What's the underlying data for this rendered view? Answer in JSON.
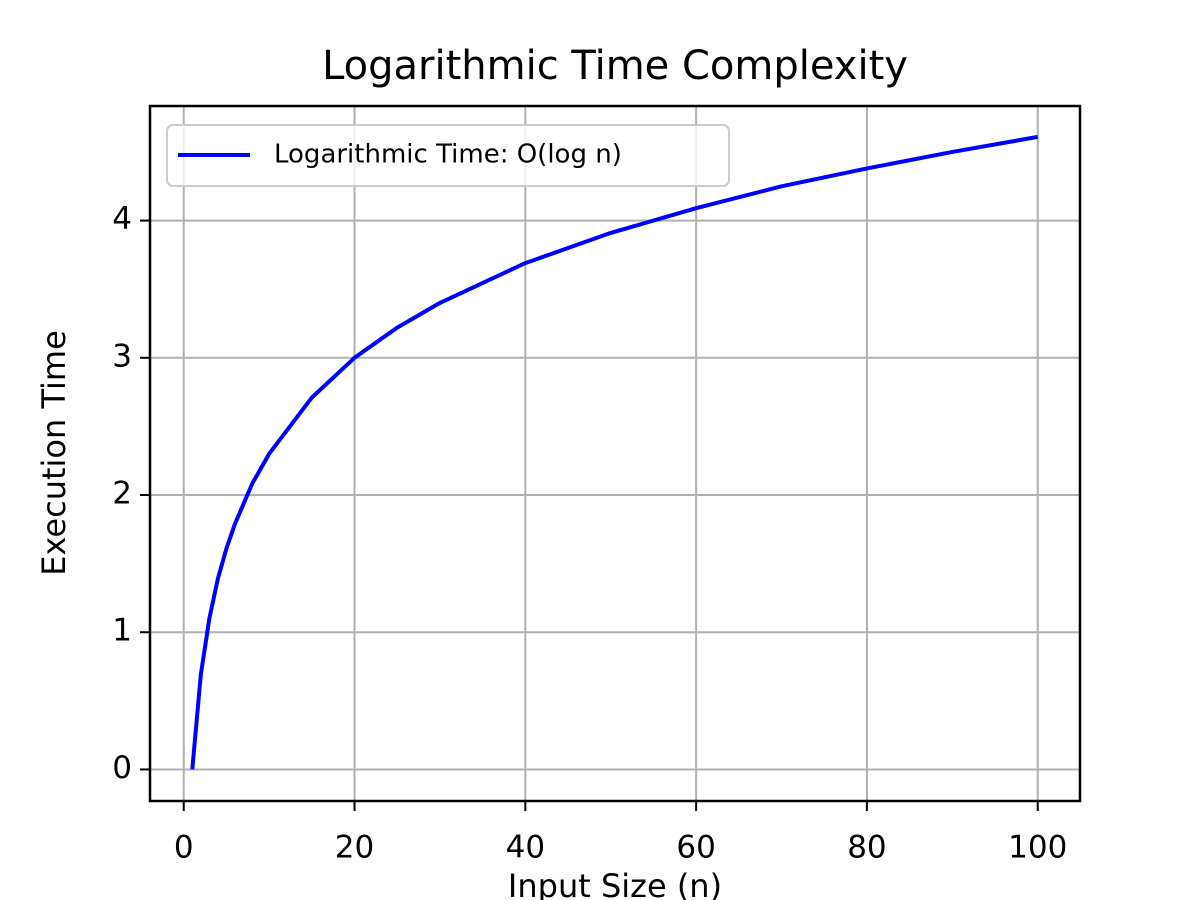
{
  "chart_data": {
    "type": "line",
    "title": "Logarithmic Time Complexity",
    "xlabel": "Input Size (n)",
    "ylabel": "Execution Time",
    "x": [
      1,
      2,
      3,
      4,
      5,
      6,
      8,
      10,
      15,
      20,
      25,
      30,
      40,
      50,
      60,
      70,
      80,
      90,
      100
    ],
    "series": [
      {
        "name": "Logarithmic Time: O(log n)",
        "color": "#0000ff",
        "values": [
          0,
          0.69,
          1.1,
          1.39,
          1.61,
          1.79,
          2.08,
          2.3,
          2.71,
          3.0,
          3.22,
          3.4,
          3.69,
          3.91,
          4.09,
          4.25,
          4.38,
          4.5,
          4.61
        ]
      }
    ],
    "xlim": [
      -3.95,
      104.95
    ],
    "ylim": [
      -0.23,
      4.835
    ],
    "xticks": [
      0,
      20,
      40,
      60,
      80,
      100
    ],
    "yticks": [
      0,
      1,
      2,
      3,
      4
    ],
    "grid": true,
    "legend": "upper left"
  }
}
